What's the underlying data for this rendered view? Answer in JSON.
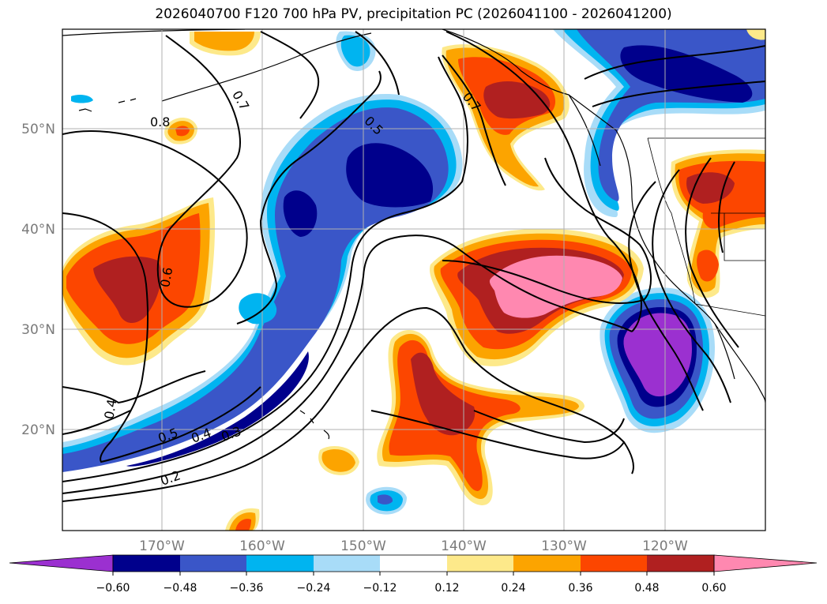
{
  "title": "2026040700 F120 700 hPa PV, precipitation PC (2026041100 - 2026041200)",
  "map": {
    "lat_labels": [
      "50°N",
      "40°N",
      "30°N",
      "20°N"
    ],
    "lon_labels": [
      "170°W",
      "160°W",
      "150°W",
      "140°W",
      "130°W",
      "120°W"
    ],
    "contour_labels": [
      "0.8",
      "0.7",
      "0.7",
      "0.5",
      "0.6",
      "0.4",
      "0.5",
      "0.4",
      "0.3",
      "0.2"
    ],
    "fill_colors": {
      "purple": "#9b30d0",
      "navy": "#00008c",
      "royal": "#3a56c8",
      "cyan": "#00b4f0",
      "lightblue": "#a8dcf8",
      "yellow": "#fde98a",
      "orange": "#fca400",
      "redorange": "#fc4600",
      "darkred": "#b02020",
      "pink": "#ff88b0"
    }
  },
  "colorbar": {
    "ticks": [
      "−0.60",
      "−0.48",
      "−0.36",
      "−0.24",
      "−0.12",
      "0.12",
      "0.24",
      "0.36",
      "0.48",
      "0.60"
    ],
    "colors": [
      "#9b30d0",
      "#00008c",
      "#3a56c8",
      "#00b4f0",
      "#a8dcf8",
      "#ffffff",
      "#fde98a",
      "#fca400",
      "#fc4600",
      "#b02020",
      "#ff88b0"
    ]
  }
}
